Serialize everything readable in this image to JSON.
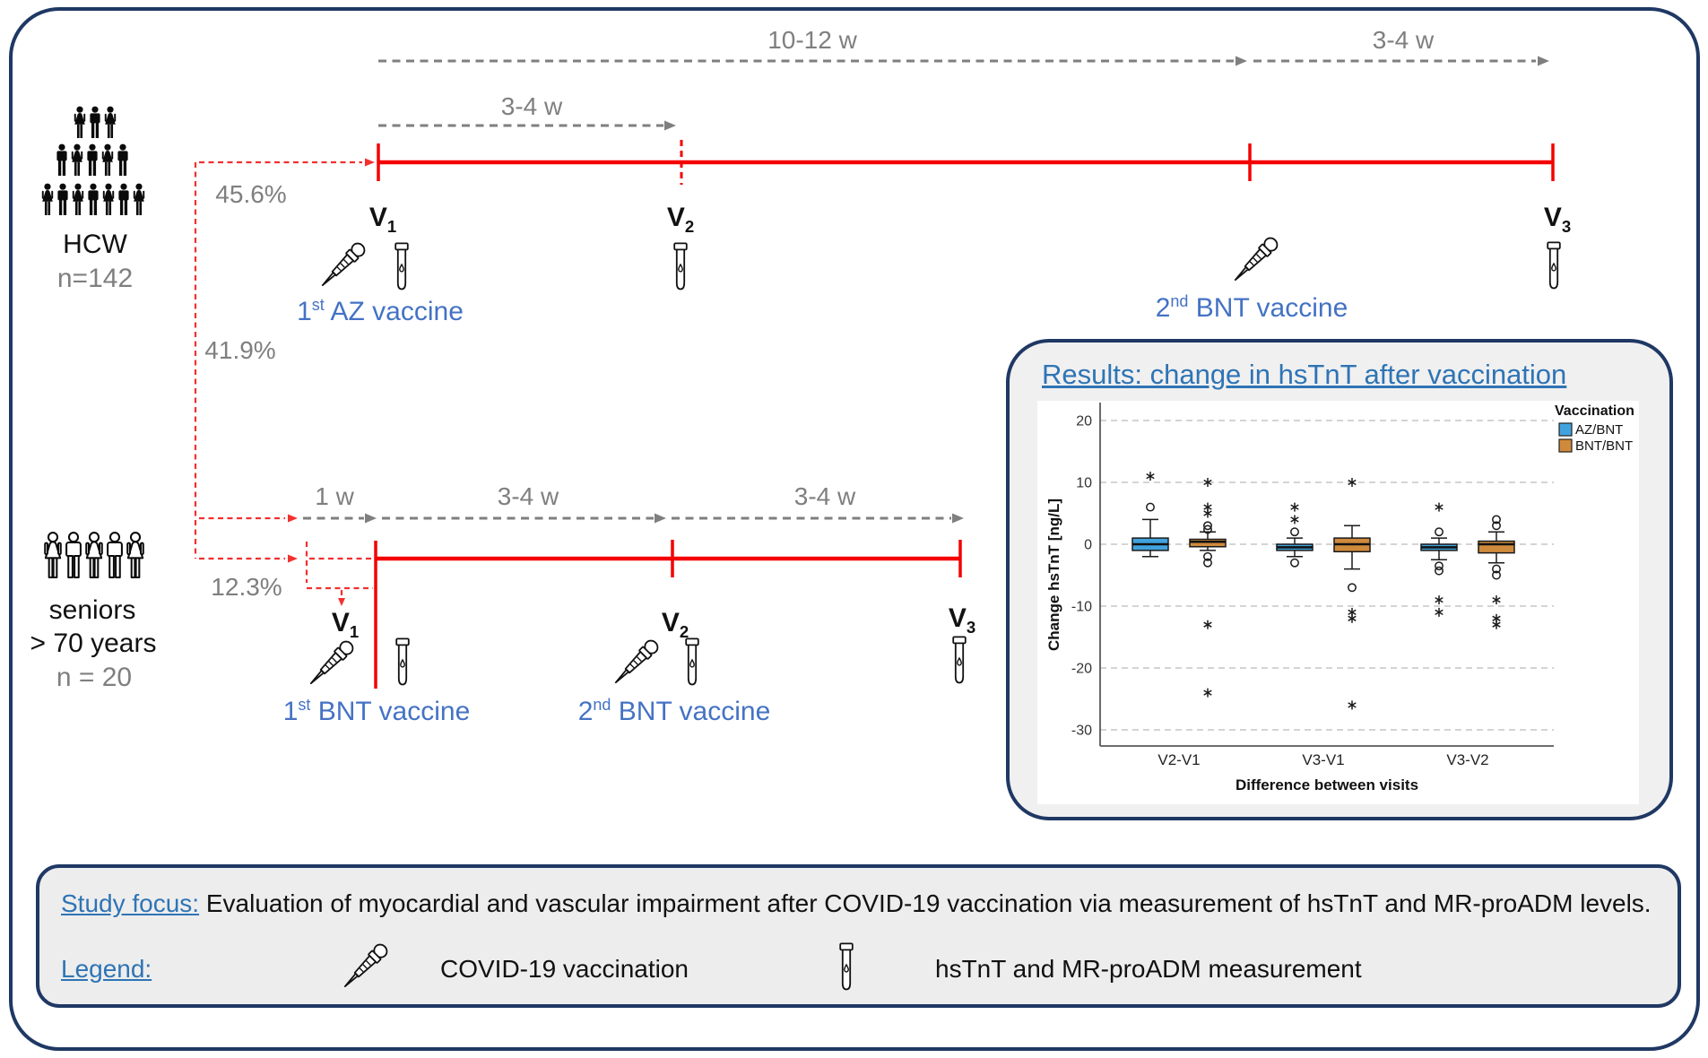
{
  "colors": {
    "navy_border": "#1F3864",
    "timeline_red": "#F40000",
    "dashed_red": "#F23030",
    "arrow_gray": "#7f7f7f",
    "label_gray": "#7f7f7f",
    "vaccine_blue": "#4472C4",
    "heading_blue": "#2E74B5",
    "box_fill": "#F0F0F0"
  },
  "hcw": {
    "group_label": "HCW",
    "n_label": "n=142",
    "percent": "45.6%",
    "intervals": [
      "10-12 w",
      "3-4 w",
      "3-4 w"
    ],
    "visits": [
      {
        "base": "V",
        "sub": "1"
      },
      {
        "base": "V",
        "sub": "2"
      },
      {
        "base": "V",
        "sub": "3"
      }
    ],
    "vaccine1": {
      "num": "1",
      "ord": "st",
      "rest": " AZ vaccine"
    },
    "vaccine2": {
      "num": "2",
      "ord": "nd",
      "rest": " BNT vaccine"
    }
  },
  "seniors": {
    "group_label": "seniors",
    "age_label": "> 70 years",
    "n_label": "n = 20",
    "percent_main": "41.9%",
    "percent_alt": "12.3%",
    "intervals": [
      "1 w",
      "3-4 w",
      "3-4 w"
    ],
    "visits": [
      {
        "base": "V",
        "sub": "1"
      },
      {
        "base": "V",
        "sub": "2"
      },
      {
        "base": "V",
        "sub": "3"
      }
    ],
    "vaccine1": {
      "num": "1",
      "ord": "st",
      "rest": " BNT vaccine"
    },
    "vaccine2": {
      "num": "2",
      "ord": "nd",
      "rest": " BNT vaccine"
    }
  },
  "results": {
    "title": "Results: change in hsTnT after vaccination"
  },
  "chart_data": {
    "type": "boxplot",
    "title": "Results: change in hsTnT after vaccination",
    "xlabel": "Difference between visits",
    "ylabel": "Change hsTnT [ng/L]",
    "ylim": [
      -33,
      23
    ],
    "yticks": [
      20,
      10,
      0,
      -10,
      -20,
      -30
    ],
    "grid": "dashed-horizontal",
    "categories": [
      "V2-V1",
      "V3-V1",
      "V3-V2"
    ],
    "legend_title": "Vaccination",
    "legend_position": "top-right",
    "series": [
      {
        "name": "AZ/BNT",
        "color": "#41A3DE",
        "boxes": [
          {
            "q1": -1,
            "median": 0,
            "q3": 1,
            "whisker_low": -2,
            "whisker_high": 4,
            "outliers_circle": [
              6
            ],
            "outliers_star": [
              11
            ]
          },
          {
            "q1": -1,
            "median": -0.5,
            "q3": 0,
            "whisker_low": -2,
            "whisker_high": 1,
            "outliers_circle": [
              2,
              -3
            ],
            "outliers_star": [
              4,
              6
            ]
          },
          {
            "q1": -1,
            "median": -0.5,
            "q3": 0,
            "whisker_low": -2.5,
            "whisker_high": 1,
            "outliers_circle": [
              2,
              -3.5,
              -4.3
            ],
            "outliers_star": [
              6,
              -9,
              -11
            ]
          }
        ]
      },
      {
        "name": "BNT/BNT",
        "color": "#D08A3C",
        "boxes": [
          {
            "q1": -0.4,
            "median": 0.4,
            "q3": 0.8,
            "whisker_low": -1,
            "whisker_high": 2,
            "outliers_circle": [
              2.4,
              3,
              -2,
              -3
            ],
            "outliers_star": [
              5,
              6,
              10,
              -13,
              -24
            ]
          },
          {
            "q1": -1.2,
            "median": 0,
            "q3": 1,
            "whisker_low": -4,
            "whisker_high": 3,
            "outliers_circle": [
              -7
            ],
            "outliers_star": [
              10,
              -11,
              -12,
              -26
            ]
          },
          {
            "q1": -1.4,
            "median": 0,
            "q3": 0.5,
            "whisker_low": -3,
            "whisker_high": 2,
            "outliers_circle": [
              3,
              4,
              -4,
              -5
            ],
            "outliers_star": [
              -9,
              -12,
              -13
            ]
          }
        ]
      }
    ]
  },
  "footer": {
    "study_focus_label": "Study focus:",
    "study_focus_text": " Evaluation of myocardial and vascular impairment after COVID-19 vaccination via measurement of hsTnT and MR-proADM levels.",
    "legend_label": "Legend:",
    "legend_items": [
      {
        "icon": "dropper-icon",
        "label": "COVID-19 vaccination"
      },
      {
        "icon": "tube-icon",
        "label": "hsTnT and MR-proADM measurement"
      }
    ]
  }
}
